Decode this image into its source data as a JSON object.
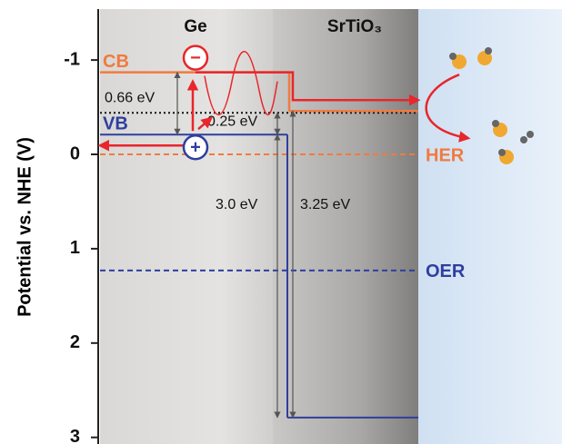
{
  "chart_data": {
    "type": "band",
    "ylabel": "Potential vs. NHE (V)",
    "ylim": [
      -1.54,
      3.07
    ],
    "yticks": [
      -1,
      0,
      1,
      2,
      3
    ],
    "inverted": true,
    "materials": [
      {
        "name": "Ge",
        "cb": -0.87,
        "vb": -0.21
      },
      {
        "name": "SrTiO₃",
        "cb": -0.46,
        "vb": 2.79
      }
    ],
    "band_labels": [
      "CB",
      "VB"
    ],
    "colors": {
      "cb": "#f07b3f",
      "vb": "#2e3f9e",
      "path": "#e8262b"
    },
    "redox": [
      {
        "name": "HER",
        "value": 0,
        "color": "#f07b3f"
      },
      {
        "name": "OER",
        "value": 1.23,
        "color": "#2e3f9e"
      }
    ],
    "annotations": [
      "0.66 eV",
      "0.25 eV",
      "3.0 eV",
      "3.25 eV"
    ],
    "carriers": [
      "−",
      "+"
    ]
  }
}
